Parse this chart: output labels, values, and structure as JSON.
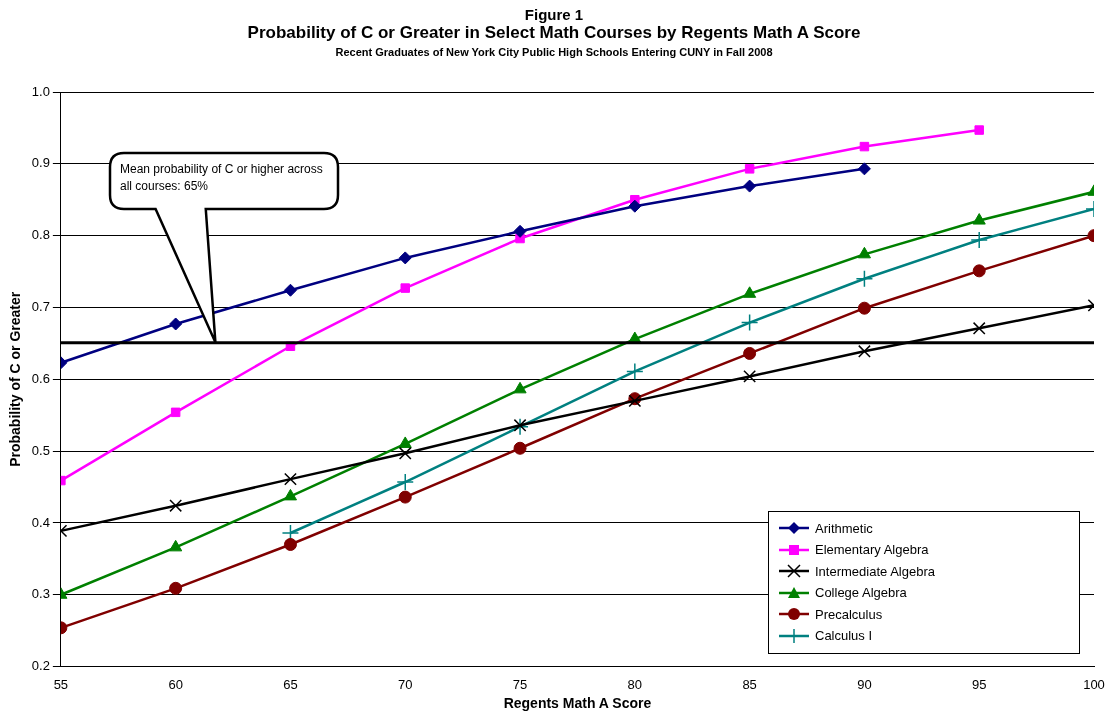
{
  "chart_data": {
    "type": "line",
    "title": "Probability of C or Greater in Select Math Courses by Regents Math A Score",
    "subtitle": "Recent Graduates of New York City Public High Schools Entering CUNY in Fall 2008",
    "annotations": [
      "Figure 1",
      "Mean probability of C or higher across all courses: 65%"
    ],
    "xlabel": "Regents Math A Score",
    "ylabel": "Probability of C or Greater",
    "x": [
      55,
      60,
      65,
      70,
      75,
      80,
      85,
      90,
      95,
      100
    ],
    "xlim": [
      55,
      100
    ],
    "xticks": [
      55,
      60,
      65,
      70,
      75,
      80,
      85,
      90,
      95,
      100
    ],
    "ylim": [
      0.2,
      1.0
    ],
    "yticks": [
      0.2,
      0.3,
      0.4,
      0.5,
      0.6,
      0.7,
      0.8,
      0.9,
      {
        "value": 1,
        "label": "1.0"
      }
    ],
    "grid": "y",
    "legend": "bottom right",
    "series": [
      {
        "name": "Arithmetic",
        "color": "#000080",
        "marker": "diamond",
        "values": [
          0.623,
          0.677,
          0.724,
          0.769,
          0.806,
          0.841,
          0.869,
          0.893,
          null,
          null
        ]
      },
      {
        "name": "Elementary Algebra",
        "color": "#ff00ff",
        "marker": "square",
        "values": [
          0.459,
          0.554,
          0.646,
          0.727,
          0.796,
          0.85,
          0.893,
          0.924,
          0.947,
          null
        ]
      },
      {
        "name": "Intermediate Algebra",
        "color": "#000000",
        "marker": "cross",
        "values": [
          0.389,
          0.424,
          0.461,
          0.497,
          0.536,
          0.57,
          0.604,
          0.639,
          0.671,
          0.703
        ]
      },
      {
        "name": "College Algebra",
        "color": "#008000",
        "marker": "triangle",
        "values": [
          0.3,
          0.366,
          0.437,
          0.51,
          0.586,
          0.656,
          0.719,
          0.774,
          0.821,
          0.861
        ]
      },
      {
        "name": "Precalculus",
        "color": "#800000",
        "marker": "circle",
        "values": [
          0.254,
          0.309,
          0.37,
          0.436,
          0.504,
          0.573,
          0.636,
          0.699,
          0.751,
          0.8
        ]
      },
      {
        "name": "Calculus I",
        "color": "#008080",
        "marker": "plus",
        "values": [
          null,
          null,
          0.386,
          0.457,
          0.534,
          0.611,
          0.679,
          0.74,
          0.794,
          0.837
        ]
      }
    ],
    "ref_lines": [
      {
        "axis": "y",
        "value": 0.651,
        "color": "#000000"
      }
    ]
  }
}
